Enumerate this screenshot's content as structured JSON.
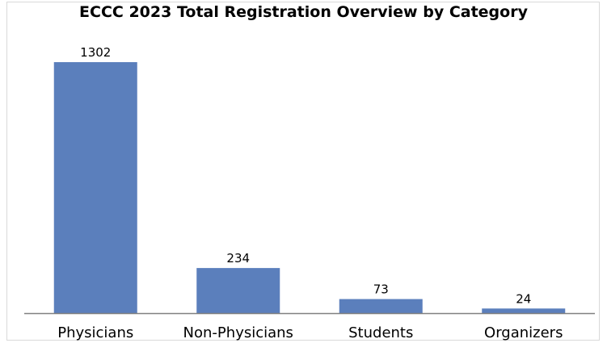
{
  "chart_data": {
    "type": "bar",
    "title": "ECCC 2023 Total Registration Overview by Category",
    "categories": [
      "Physicians",
      "Non-Physicians",
      "Students",
      "Organizers"
    ],
    "values": [
      1302,
      234,
      73,
      24
    ],
    "data_labels": [
      "1302",
      "234",
      "73",
      "24"
    ],
    "xlabel": "",
    "ylabel": "",
    "ylim": [
      0,
      1302
    ],
    "grid": false,
    "legend": "none",
    "bar_color": "#5b7fbc",
    "axis_color": "#808080"
  }
}
